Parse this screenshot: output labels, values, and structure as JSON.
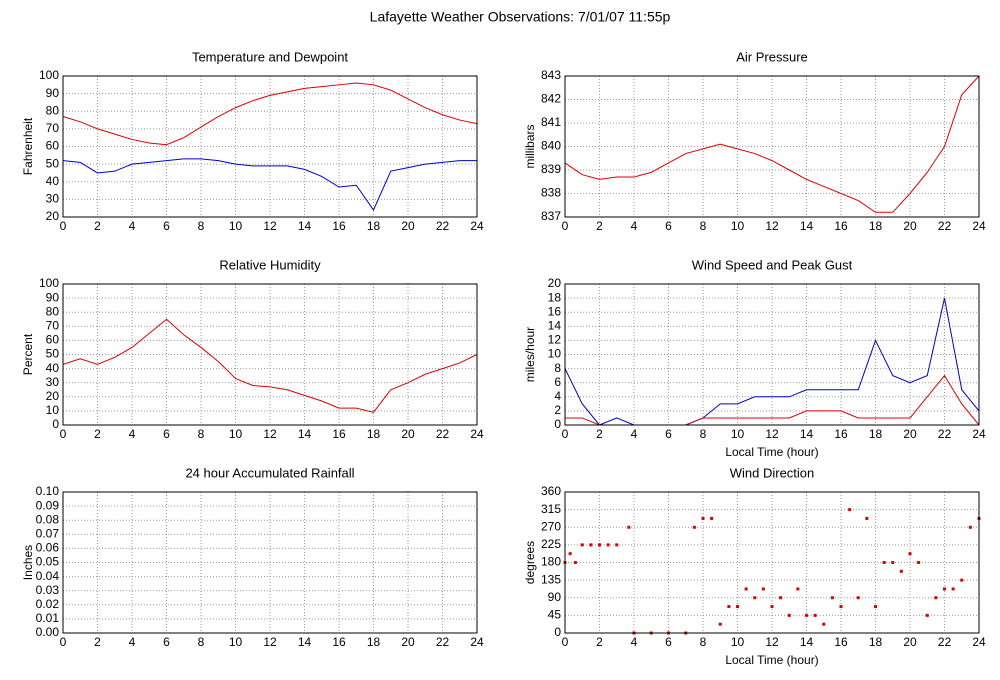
{
  "title": "Lafayette Weather Observations: 7/01/07 11:55p",
  "chart_data": [
    {
      "type": "line",
      "title": "Temperature and Dewpoint",
      "ylabel": "Fahrenheit",
      "x": [
        0,
        1,
        2,
        3,
        4,
        5,
        6,
        7,
        8,
        9,
        10,
        11,
        12,
        13,
        14,
        15,
        16,
        17,
        18,
        19,
        20,
        21,
        22,
        23,
        24
      ],
      "series": [
        {
          "name": "Temperature",
          "color": "#dd0000",
          "values": [
            77,
            74,
            70,
            67,
            64,
            62,
            61,
            65,
            71,
            77,
            82,
            86,
            89,
            91,
            93,
            94,
            95,
            96,
            95,
            92,
            87,
            82,
            78,
            75,
            73
          ]
        },
        {
          "name": "Dewpoint",
          "color": "#0000cc",
          "values": [
            52,
            51,
            45,
            46,
            50,
            51,
            52,
            53,
            53,
            52,
            50,
            49,
            49,
            49,
            47,
            43,
            37,
            38,
            24,
            46,
            48,
            50,
            51,
            52,
            52
          ]
        }
      ],
      "xlim": [
        0,
        24
      ],
      "xticks": [
        0,
        2,
        4,
        6,
        8,
        10,
        12,
        14,
        16,
        18,
        20,
        22,
        24
      ],
      "ylim": [
        20,
        100
      ],
      "yticks": [
        20,
        30,
        40,
        50,
        60,
        70,
        80,
        90,
        100
      ],
      "grid": true
    },
    {
      "type": "line",
      "title": "Air Pressure",
      "ylabel": "millibars",
      "x": [
        0,
        1,
        2,
        3,
        4,
        5,
        6,
        7,
        8,
        9,
        10,
        11,
        12,
        13,
        14,
        15,
        16,
        17,
        18,
        19,
        20,
        21,
        22,
        23,
        24
      ],
      "series": [
        {
          "name": "Pressure",
          "color": "#dd0000",
          "values": [
            839.3,
            838.8,
            838.6,
            838.7,
            838.7,
            838.9,
            839.3,
            839.7,
            839.9,
            840.1,
            839.9,
            839.7,
            839.4,
            839.0,
            838.6,
            838.3,
            838.0,
            837.7,
            837.2,
            837.2,
            838.0,
            838.9,
            840.0,
            842.2,
            843
          ]
        }
      ],
      "xlim": [
        0,
        24
      ],
      "xticks": [
        0,
        2,
        4,
        6,
        8,
        10,
        12,
        14,
        16,
        18,
        20,
        22,
        24
      ],
      "ylim": [
        837,
        843
      ],
      "yticks": [
        837,
        838,
        839,
        840,
        841,
        842,
        843
      ],
      "grid": true
    },
    {
      "type": "line",
      "title": "Relative Humidity",
      "ylabel": "Percent",
      "x": [
        0,
        1,
        2,
        3,
        4,
        5,
        6,
        7,
        8,
        9,
        10,
        11,
        12,
        13,
        14,
        15,
        16,
        17,
        18,
        19,
        20,
        21,
        22,
        23,
        24
      ],
      "series": [
        {
          "name": "Humidity",
          "color": "#dd0000",
          "values": [
            43,
            47,
            43,
            48,
            55,
            65,
            75,
            64,
            55,
            45,
            33,
            28,
            27,
            25,
            21,
            17,
            12,
            12,
            9,
            25,
            30,
            36,
            40,
            44,
            50
          ]
        }
      ],
      "xlim": [
        0,
        24
      ],
      "xticks": [
        0,
        2,
        4,
        6,
        8,
        10,
        12,
        14,
        16,
        18,
        20,
        22,
        24
      ],
      "ylim": [
        0,
        100
      ],
      "yticks": [
        0,
        10,
        20,
        30,
        40,
        50,
        60,
        70,
        80,
        90,
        100
      ],
      "grid": true
    },
    {
      "type": "line",
      "title": "Wind Speed and Peak Gust",
      "ylabel": "miles/hour",
      "xlabel": "Local Time (hour)",
      "x": [
        0,
        1,
        2,
        3,
        4,
        5,
        6,
        7,
        8,
        9,
        10,
        11,
        12,
        13,
        14,
        15,
        16,
        17,
        18,
        19,
        20,
        21,
        22,
        23,
        24
      ],
      "series": [
        {
          "name": "Peak Gust",
          "color": "#0000cc",
          "values": [
            8,
            3,
            0,
            1,
            0,
            0,
            0,
            0,
            1,
            3,
            3,
            4,
            4,
            4,
            5,
            5,
            5,
            5,
            12,
            7,
            6,
            7,
            18,
            5,
            2
          ]
        },
        {
          "name": "Wind Speed",
          "color": "#dd0000",
          "values": [
            1,
            1,
            0,
            0,
            0,
            0,
            0,
            0,
            1,
            1,
            1,
            1,
            1,
            1,
            2,
            2,
            2,
            1,
            1,
            1,
            1,
            4,
            7,
            3,
            0
          ]
        }
      ],
      "xlim": [
        0,
        24
      ],
      "xticks": [
        0,
        2,
        4,
        6,
        8,
        10,
        12,
        14,
        16,
        18,
        20,
        22,
        24
      ],
      "ylim": [
        0,
        20
      ],
      "yticks": [
        0,
        2,
        4,
        6,
        8,
        10,
        12,
        14,
        16,
        18,
        20
      ],
      "grid": true
    },
    {
      "type": "line",
      "title": "24 hour Accumulated Rainfall",
      "ylabel": "Inches",
      "x": [
        0,
        24
      ],
      "series": [
        {
          "name": "Rainfall",
          "color": "#dd0000",
          "values": [
            0,
            0
          ]
        }
      ],
      "xlim": [
        0,
        24
      ],
      "xticks": [
        0,
        2,
        4,
        6,
        8,
        10,
        12,
        14,
        16,
        18,
        20,
        22,
        24
      ],
      "ylim": [
        0,
        0.1
      ],
      "yticks": [
        {
          "value": 0,
          "label": "0.00"
        },
        {
          "value": 0.01,
          "label": "0.01"
        },
        {
          "value": 0.02,
          "label": "0.02"
        },
        {
          "value": 0.03,
          "label": "0.03"
        },
        {
          "value": 0.04,
          "label": "0.04"
        },
        {
          "value": 0.05,
          "label": "0.05"
        },
        {
          "value": 0.06,
          "label": "0.06"
        },
        {
          "value": 0.07,
          "label": "0.07"
        },
        {
          "value": 0.08,
          "label": "0.08"
        },
        {
          "value": 0.09,
          "label": "0.09"
        },
        {
          "value": 0.1,
          "label": "0.10"
        }
      ],
      "grid": true
    },
    {
      "type": "scatter",
      "title": "Wind Direction",
      "ylabel": "degrees",
      "xlabel": "Local Time (hour)",
      "x": [
        0,
        0.3,
        0.6,
        1,
        1.5,
        2,
        2.5,
        3,
        3.7,
        4,
        5,
        6,
        7,
        7.5,
        8,
        8.5,
        9,
        9.5,
        10,
        10.5,
        11,
        11.5,
        12,
        12.5,
        13,
        13.5,
        14,
        14.5,
        15,
        15.5,
        16,
        16.5,
        17,
        17.5,
        18,
        18.5,
        19,
        19.5,
        20,
        20.5,
        21,
        21.5,
        22,
        22.5,
        23,
        23.5,
        24
      ],
      "series": [
        {
          "name": "Direction",
          "color": "#dd0000",
          "values": [
            180,
            202.5,
            180,
            225,
            225,
            225,
            225,
            225,
            270,
            0,
            0,
            0,
            0,
            270,
            292.5,
            292.5,
            22.5,
            67.5,
            67.5,
            112.5,
            90,
            112.5,
            67.5,
            90,
            45,
            112.5,
            45,
            45,
            22.5,
            90,
            67.5,
            315,
            90,
            292.5,
            67.5,
            180,
            180,
            157.5,
            202.5,
            180,
            45,
            90,
            112.5,
            112.5,
            135,
            270,
            292.5
          ]
        }
      ],
      "xlim": [
        0,
        24
      ],
      "xticks": [
        0,
        2,
        4,
        6,
        8,
        10,
        12,
        14,
        16,
        18,
        20,
        22,
        24
      ],
      "ylim": [
        0,
        360
      ],
      "yticks": [
        0,
        45,
        90,
        135,
        180,
        225,
        270,
        315,
        360
      ],
      "grid": true
    }
  ]
}
